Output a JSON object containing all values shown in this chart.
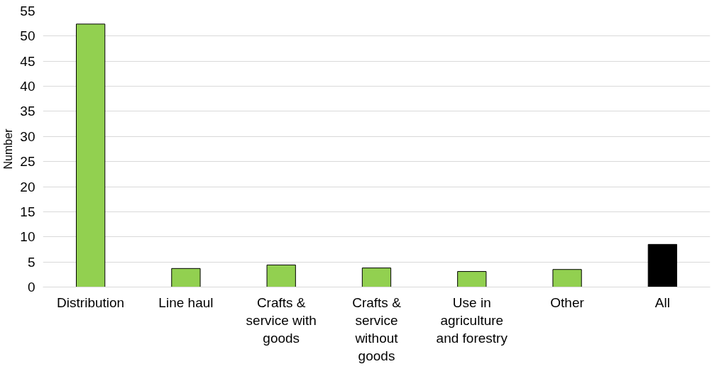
{
  "chart_data": {
    "type": "bar",
    "ylabel": "Number",
    "categories": [
      "Distribution",
      "Line haul",
      "Crafts & service with goods",
      "Crafts & service without goods",
      "Use in agriculture and forestry",
      "Other",
      "All"
    ],
    "values": [
      52.4,
      3.7,
      4.4,
      3.8,
      3.1,
      3.5,
      8.5
    ],
    "colors": [
      "#92d050",
      "#92d050",
      "#92d050",
      "#92d050",
      "#92d050",
      "#92d050",
      "#000000"
    ],
    "ylim": [
      0,
      55
    ],
    "yticks": [
      0,
      5,
      10,
      15,
      20,
      25,
      30,
      35,
      40,
      45,
      50,
      55
    ],
    "grid": "y"
  }
}
